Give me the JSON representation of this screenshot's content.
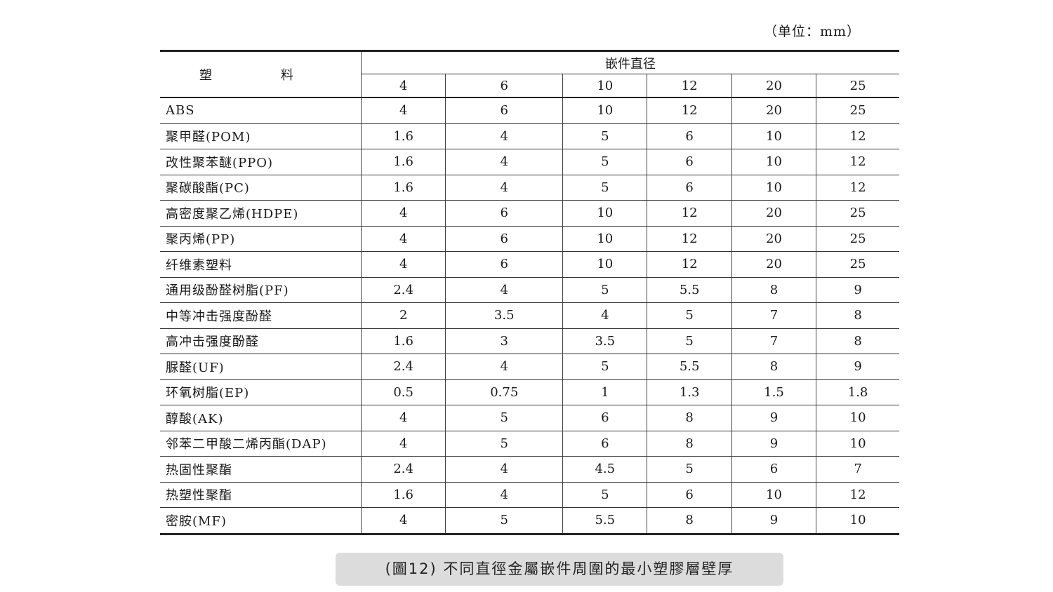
{
  "unit_label": "（单位：mm）",
  "table": {
    "material_header": "塑　料",
    "diameter_header": "嵌件直径",
    "diameters": [
      "4",
      "6",
      "10",
      "12",
      "20",
      "25"
    ],
    "rows": [
      {
        "name": "ABS",
        "values": [
          "4",
          "6",
          "10",
          "12",
          "20",
          "25"
        ]
      },
      {
        "name": "聚甲醛(POM)",
        "values": [
          "1.6",
          "4",
          "5",
          "6",
          "10",
          "12"
        ]
      },
      {
        "name": "改性聚苯醚(PPO)",
        "values": [
          "1.6",
          "4",
          "5",
          "6",
          "10",
          "12"
        ]
      },
      {
        "name": "聚碳酸酯(PC)",
        "values": [
          "1.6",
          "4",
          "5",
          "6",
          "10",
          "12"
        ]
      },
      {
        "name": "高密度聚乙烯(HDPE)",
        "values": [
          "4",
          "6",
          "10",
          "12",
          "20",
          "25"
        ]
      },
      {
        "name": "聚丙烯(PP)",
        "values": [
          "4",
          "6",
          "10",
          "12",
          "20",
          "25"
        ]
      },
      {
        "name": "纤维素塑料",
        "values": [
          "4",
          "6",
          "10",
          "12",
          "20",
          "25"
        ]
      },
      {
        "name": "通用级酚醛树脂(PF)",
        "values": [
          "2.4",
          "4",
          "5",
          "5.5",
          "8",
          "9"
        ]
      },
      {
        "name": "中等冲击强度酚醛",
        "values": [
          "2",
          "3.5",
          "4",
          "5",
          "7",
          "8"
        ]
      },
      {
        "name": "高冲击强度酚醛",
        "values": [
          "1.6",
          "3",
          "3.5",
          "5",
          "7",
          "8"
        ]
      },
      {
        "name": "脲醛(UF)",
        "values": [
          "2.4",
          "4",
          "5",
          "5.5",
          "8",
          "9"
        ]
      },
      {
        "name": "环氧树脂(EP)",
        "values": [
          "0.5",
          "0.75",
          "1",
          "1.3",
          "1.5",
          "1.8"
        ]
      },
      {
        "name": "醇酸(AK)",
        "values": [
          "4",
          "5",
          "6",
          "8",
          "9",
          "10"
        ]
      },
      {
        "name": "邻苯二甲酸二烯丙酯(DAP)",
        "values": [
          "4",
          "5",
          "6",
          "8",
          "9",
          "10"
        ]
      },
      {
        "name": "热固性聚酯",
        "values": [
          "2.4",
          "4",
          "4.5",
          "5",
          "6",
          "7"
        ]
      },
      {
        "name": "热塑性聚酯",
        "values": [
          "1.6",
          "4",
          "5",
          "6",
          "10",
          "12"
        ]
      },
      {
        "name": "密胺(MF)",
        "values": [
          "4",
          "5",
          "5.5",
          "8",
          "9",
          "10"
        ]
      }
    ]
  },
  "caption": "(圖12)  不同直徑金屬嵌件周圍的最小塑膠層壁厚"
}
